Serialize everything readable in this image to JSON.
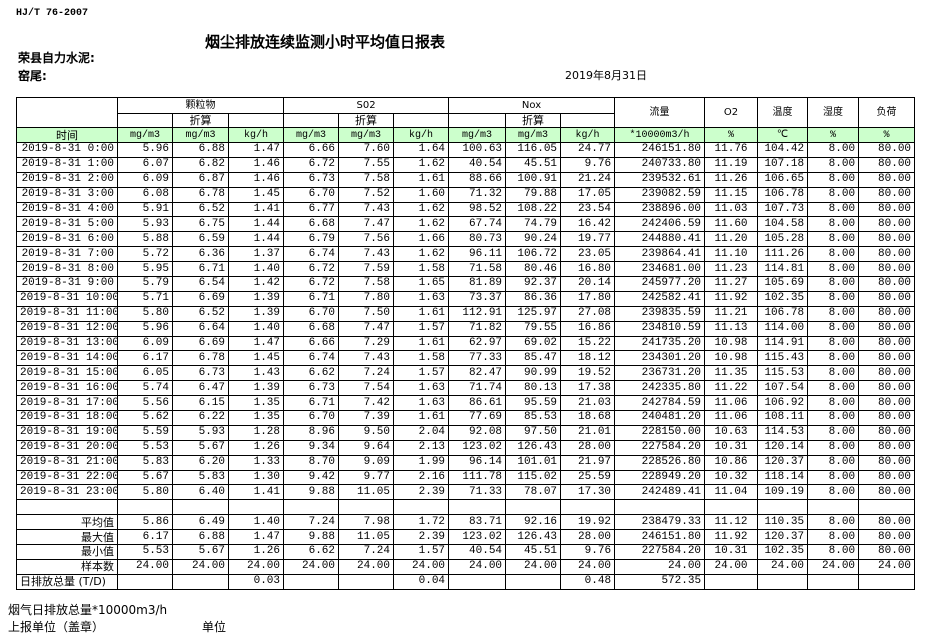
{
  "header": {
    "standard": "HJ/T  76-2007",
    "title": "烟尘排放连续监测小时平均值日报表",
    "company": "荣县自力水泥:",
    "kiln": "窑尾:",
    "date": "2019年8月31日"
  },
  "table": {
    "groups": {
      "particulate": "颗粒物",
      "so2": "S02",
      "nox": "Nox",
      "flow": "流量",
      "o2": "O2",
      "temperature": "温度",
      "humidity": "湿度",
      "load": "负荷"
    },
    "converted": "折算",
    "units": [
      "时间",
      "mg/m3",
      "mg/m3",
      "kg/h",
      "mg/m3",
      "mg/m3",
      "kg/h",
      "mg/m3",
      "mg/m3",
      "kg/h",
      "*10000m3/h",
      "%",
      "℃",
      "%",
      "%"
    ],
    "rows": [
      [
        "2019-8-31 0:00",
        "5.96",
        "6.88",
        "1.47",
        "6.66",
        "7.60",
        "1.64",
        "100.63",
        "116.05",
        "24.77",
        "246151.80",
        "11.76",
        "104.42",
        "8.00",
        "80.00"
      ],
      [
        "2019-8-31 1:00",
        "6.07",
        "6.82",
        "1.46",
        "6.72",
        "7.55",
        "1.62",
        "40.54",
        "45.51",
        "9.76",
        "240733.80",
        "11.19",
        "107.18",
        "8.00",
        "80.00"
      ],
      [
        "2019-8-31 2:00",
        "6.09",
        "6.87",
        "1.46",
        "6.73",
        "7.58",
        "1.61",
        "88.66",
        "100.91",
        "21.24",
        "239532.61",
        "11.26",
        "106.65",
        "8.00",
        "80.00"
      ],
      [
        "2019-8-31 3:00",
        "6.08",
        "6.78",
        "1.45",
        "6.70",
        "7.52",
        "1.60",
        "71.32",
        "79.88",
        "17.05",
        "239082.59",
        "11.15",
        "106.78",
        "8.00",
        "80.00"
      ],
      [
        "2019-8-31 4:00",
        "5.91",
        "6.52",
        "1.41",
        "6.77",
        "7.43",
        "1.62",
        "98.52",
        "108.22",
        "23.54",
        "238896.00",
        "11.03",
        "107.73",
        "8.00",
        "80.00"
      ],
      [
        "2019-8-31 5:00",
        "5.93",
        "6.75",
        "1.44",
        "6.68",
        "7.47",
        "1.62",
        "67.74",
        "74.79",
        "16.42",
        "242406.59",
        "11.60",
        "104.58",
        "8.00",
        "80.00"
      ],
      [
        "2019-8-31 6:00",
        "5.88",
        "6.59",
        "1.44",
        "6.79",
        "7.56",
        "1.66",
        "80.73",
        "90.24",
        "19.77",
        "244880.41",
        "11.20",
        "105.28",
        "8.00",
        "80.00"
      ],
      [
        "2019-8-31 7:00",
        "5.72",
        "6.36",
        "1.37",
        "6.74",
        "7.43",
        "1.62",
        "96.11",
        "106.72",
        "23.05",
        "239864.41",
        "11.10",
        "111.26",
        "8.00",
        "80.00"
      ],
      [
        "2019-8-31 8:00",
        "5.95",
        "6.71",
        "1.40",
        "6.72",
        "7.59",
        "1.58",
        "71.58",
        "80.46",
        "16.80",
        "234681.00",
        "11.23",
        "114.81",
        "8.00",
        "80.00"
      ],
      [
        "2019-8-31 9:00",
        "5.79",
        "6.54",
        "1.42",
        "6.72",
        "7.58",
        "1.65",
        "81.89",
        "92.37",
        "20.14",
        "245977.20",
        "11.27",
        "105.69",
        "8.00",
        "80.00"
      ],
      [
        "2019-8-31 10:00",
        "5.71",
        "6.69",
        "1.39",
        "6.71",
        "7.80",
        "1.63",
        "73.37",
        "86.36",
        "17.80",
        "242582.41",
        "11.92",
        "102.35",
        "8.00",
        "80.00"
      ],
      [
        "2019-8-31 11:00",
        "5.80",
        "6.52",
        "1.39",
        "6.70",
        "7.50",
        "1.61",
        "112.91",
        "125.97",
        "27.08",
        "239835.59",
        "11.21",
        "106.78",
        "8.00",
        "80.00"
      ],
      [
        "2019-8-31 12:00",
        "5.96",
        "6.64",
        "1.40",
        "6.68",
        "7.47",
        "1.57",
        "71.82",
        "79.55",
        "16.86",
        "234810.59",
        "11.13",
        "114.00",
        "8.00",
        "80.00"
      ],
      [
        "2019-8-31 13:00",
        "6.09",
        "6.69",
        "1.47",
        "6.66",
        "7.29",
        "1.61",
        "62.97",
        "69.02",
        "15.22",
        "241735.20",
        "10.98",
        "114.91",
        "8.00",
        "80.00"
      ],
      [
        "2019-8-31 14:00",
        "6.17",
        "6.78",
        "1.45",
        "6.74",
        "7.43",
        "1.58",
        "77.33",
        "85.47",
        "18.12",
        "234301.20",
        "10.98",
        "115.43",
        "8.00",
        "80.00"
      ],
      [
        "2019-8-31 15:00",
        "6.05",
        "6.73",
        "1.43",
        "6.62",
        "7.24",
        "1.57",
        "82.47",
        "90.99",
        "19.52",
        "236731.20",
        "11.35",
        "115.53",
        "8.00",
        "80.00"
      ],
      [
        "2019-8-31 16:00",
        "5.74",
        "6.47",
        "1.39",
        "6.73",
        "7.54",
        "1.63",
        "71.74",
        "80.13",
        "17.38",
        "242335.80",
        "11.22",
        "107.54",
        "8.00",
        "80.00"
      ],
      [
        "2019-8-31 17:00",
        "5.56",
        "6.15",
        "1.35",
        "6.71",
        "7.42",
        "1.63",
        "86.61",
        "95.59",
        "21.03",
        "242784.59",
        "11.06",
        "106.92",
        "8.00",
        "80.00"
      ],
      [
        "2019-8-31 18:00",
        "5.62",
        "6.22",
        "1.35",
        "6.70",
        "7.39",
        "1.61",
        "77.69",
        "85.53",
        "18.68",
        "240481.20",
        "11.06",
        "108.11",
        "8.00",
        "80.00"
      ],
      [
        "2019-8-31 19:00",
        "5.59",
        "5.93",
        "1.28",
        "8.96",
        "9.50",
        "2.04",
        "92.08",
        "97.50",
        "21.01",
        "228150.00",
        "10.63",
        "114.53",
        "8.00",
        "80.00"
      ],
      [
        "2019-8-31 20:00",
        "5.53",
        "5.67",
        "1.26",
        "9.34",
        "9.64",
        "2.13",
        "123.02",
        "126.43",
        "28.00",
        "227584.20",
        "10.31",
        "120.14",
        "8.00",
        "80.00"
      ],
      [
        "2019-8-31 21:00",
        "5.83",
        "6.20",
        "1.33",
        "8.70",
        "9.09",
        "1.99",
        "96.14",
        "101.01",
        "21.97",
        "228526.80",
        "10.86",
        "120.37",
        "8.00",
        "80.00"
      ],
      [
        "2019-8-31 22:00",
        "5.67",
        "5.83",
        "1.30",
        "9.42",
        "9.77",
        "2.16",
        "111.78",
        "115.02",
        "25.59",
        "228949.20",
        "10.32",
        "118.14",
        "8.00",
        "80.00"
      ],
      [
        "2019-8-31 23:00",
        "5.80",
        "6.40",
        "1.41",
        "9.88",
        "11.05",
        "2.39",
        "71.33",
        "78.07",
        "17.30",
        "242489.41",
        "11.04",
        "109.19",
        "8.00",
        "80.00"
      ]
    ],
    "summary": [
      [
        "平均值",
        "5.86",
        "6.49",
        "1.40",
        "7.24",
        "7.98",
        "1.72",
        "83.71",
        "92.16",
        "19.92",
        "238479.33",
        "11.12",
        "110.35",
        "8.00",
        "80.00"
      ],
      [
        "最大值",
        "6.17",
        "6.88",
        "1.47",
        "9.88",
        "11.05",
        "2.39",
        "123.02",
        "126.43",
        "28.00",
        "246151.80",
        "11.92",
        "120.37",
        "8.00",
        "80.00"
      ],
      [
        "最小值",
        "5.53",
        "5.67",
        "1.26",
        "6.62",
        "7.24",
        "1.57",
        "40.54",
        "45.51",
        "9.76",
        "227584.20",
        "10.31",
        "102.35",
        "8.00",
        "80.00"
      ],
      [
        "样本数",
        "24.00",
        "24.00",
        "24.00",
        "24.00",
        "24.00",
        "24.00",
        "24.00",
        "24.00",
        "24.00",
        "24.00",
        "24.00",
        "24.00",
        "24.00",
        "24.00"
      ],
      [
        "日排放总量 (T/D)",
        "",
        "",
        "0.03",
        "",
        "",
        "0.04",
        "",
        "",
        "0.48",
        "572.35",
        "",
        "",
        "",
        ""
      ]
    ]
  },
  "footer": {
    "flue_gas_total": "烟气日排放总量*10000m3/h",
    "reporting_unit": "上报单位（盖章）",
    "unit": "单位"
  },
  "colors": {
    "unit_row_bg": "#ccffcc"
  }
}
